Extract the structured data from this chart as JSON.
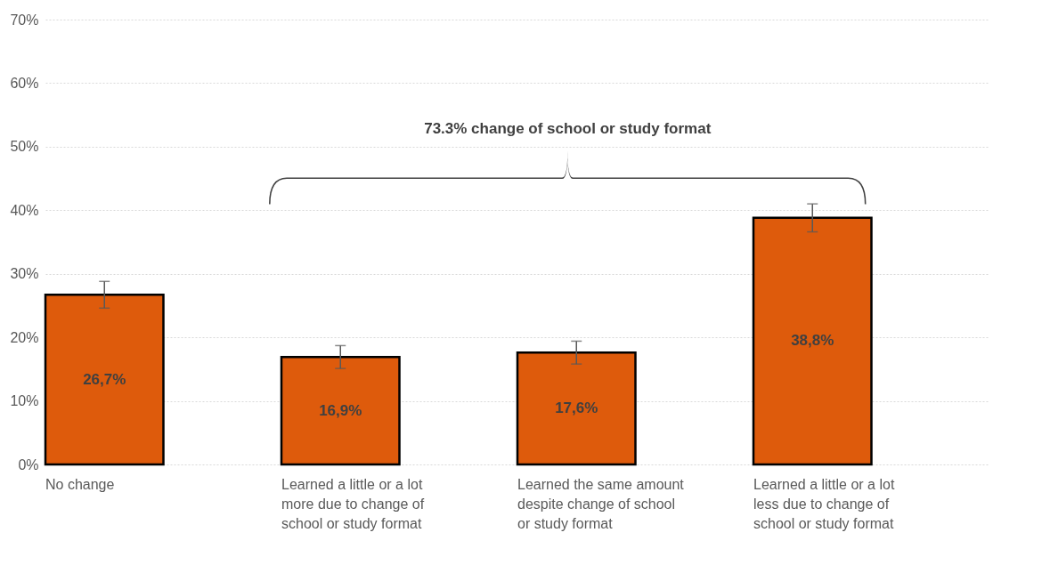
{
  "chart_data": {
    "type": "bar",
    "categories": [
      "No change",
      "Learned a little or a lot more due to change of school or study format",
      "Learned the same amount despite change of school or study format",
      "Learned a little or a lot less due to change of school or study format"
    ],
    "values": [
      26.7,
      16.9,
      17.6,
      38.8
    ],
    "value_labels": [
      "26,7%",
      "16,9%",
      "17,6%",
      "38,8%"
    ],
    "errors": [
      2.1,
      1.8,
      1.8,
      2.2
    ],
    "color": "#de5b0c",
    "ylim": [
      0,
      70
    ],
    "yticks": [
      {
        "value": 0,
        "label": "0%"
      },
      {
        "value": 10,
        "label": "10%"
      },
      {
        "value": 20,
        "label": "20%"
      },
      {
        "value": 30,
        "label": "30%"
      },
      {
        "value": 40,
        "label": "40%"
      },
      {
        "value": 50,
        "label": "50%"
      },
      {
        "value": 60,
        "label": "60%"
      },
      {
        "value": 70,
        "label": "70%"
      }
    ],
    "grid": "y",
    "annotations": [
      "73.3% change of school or study format"
    ]
  }
}
